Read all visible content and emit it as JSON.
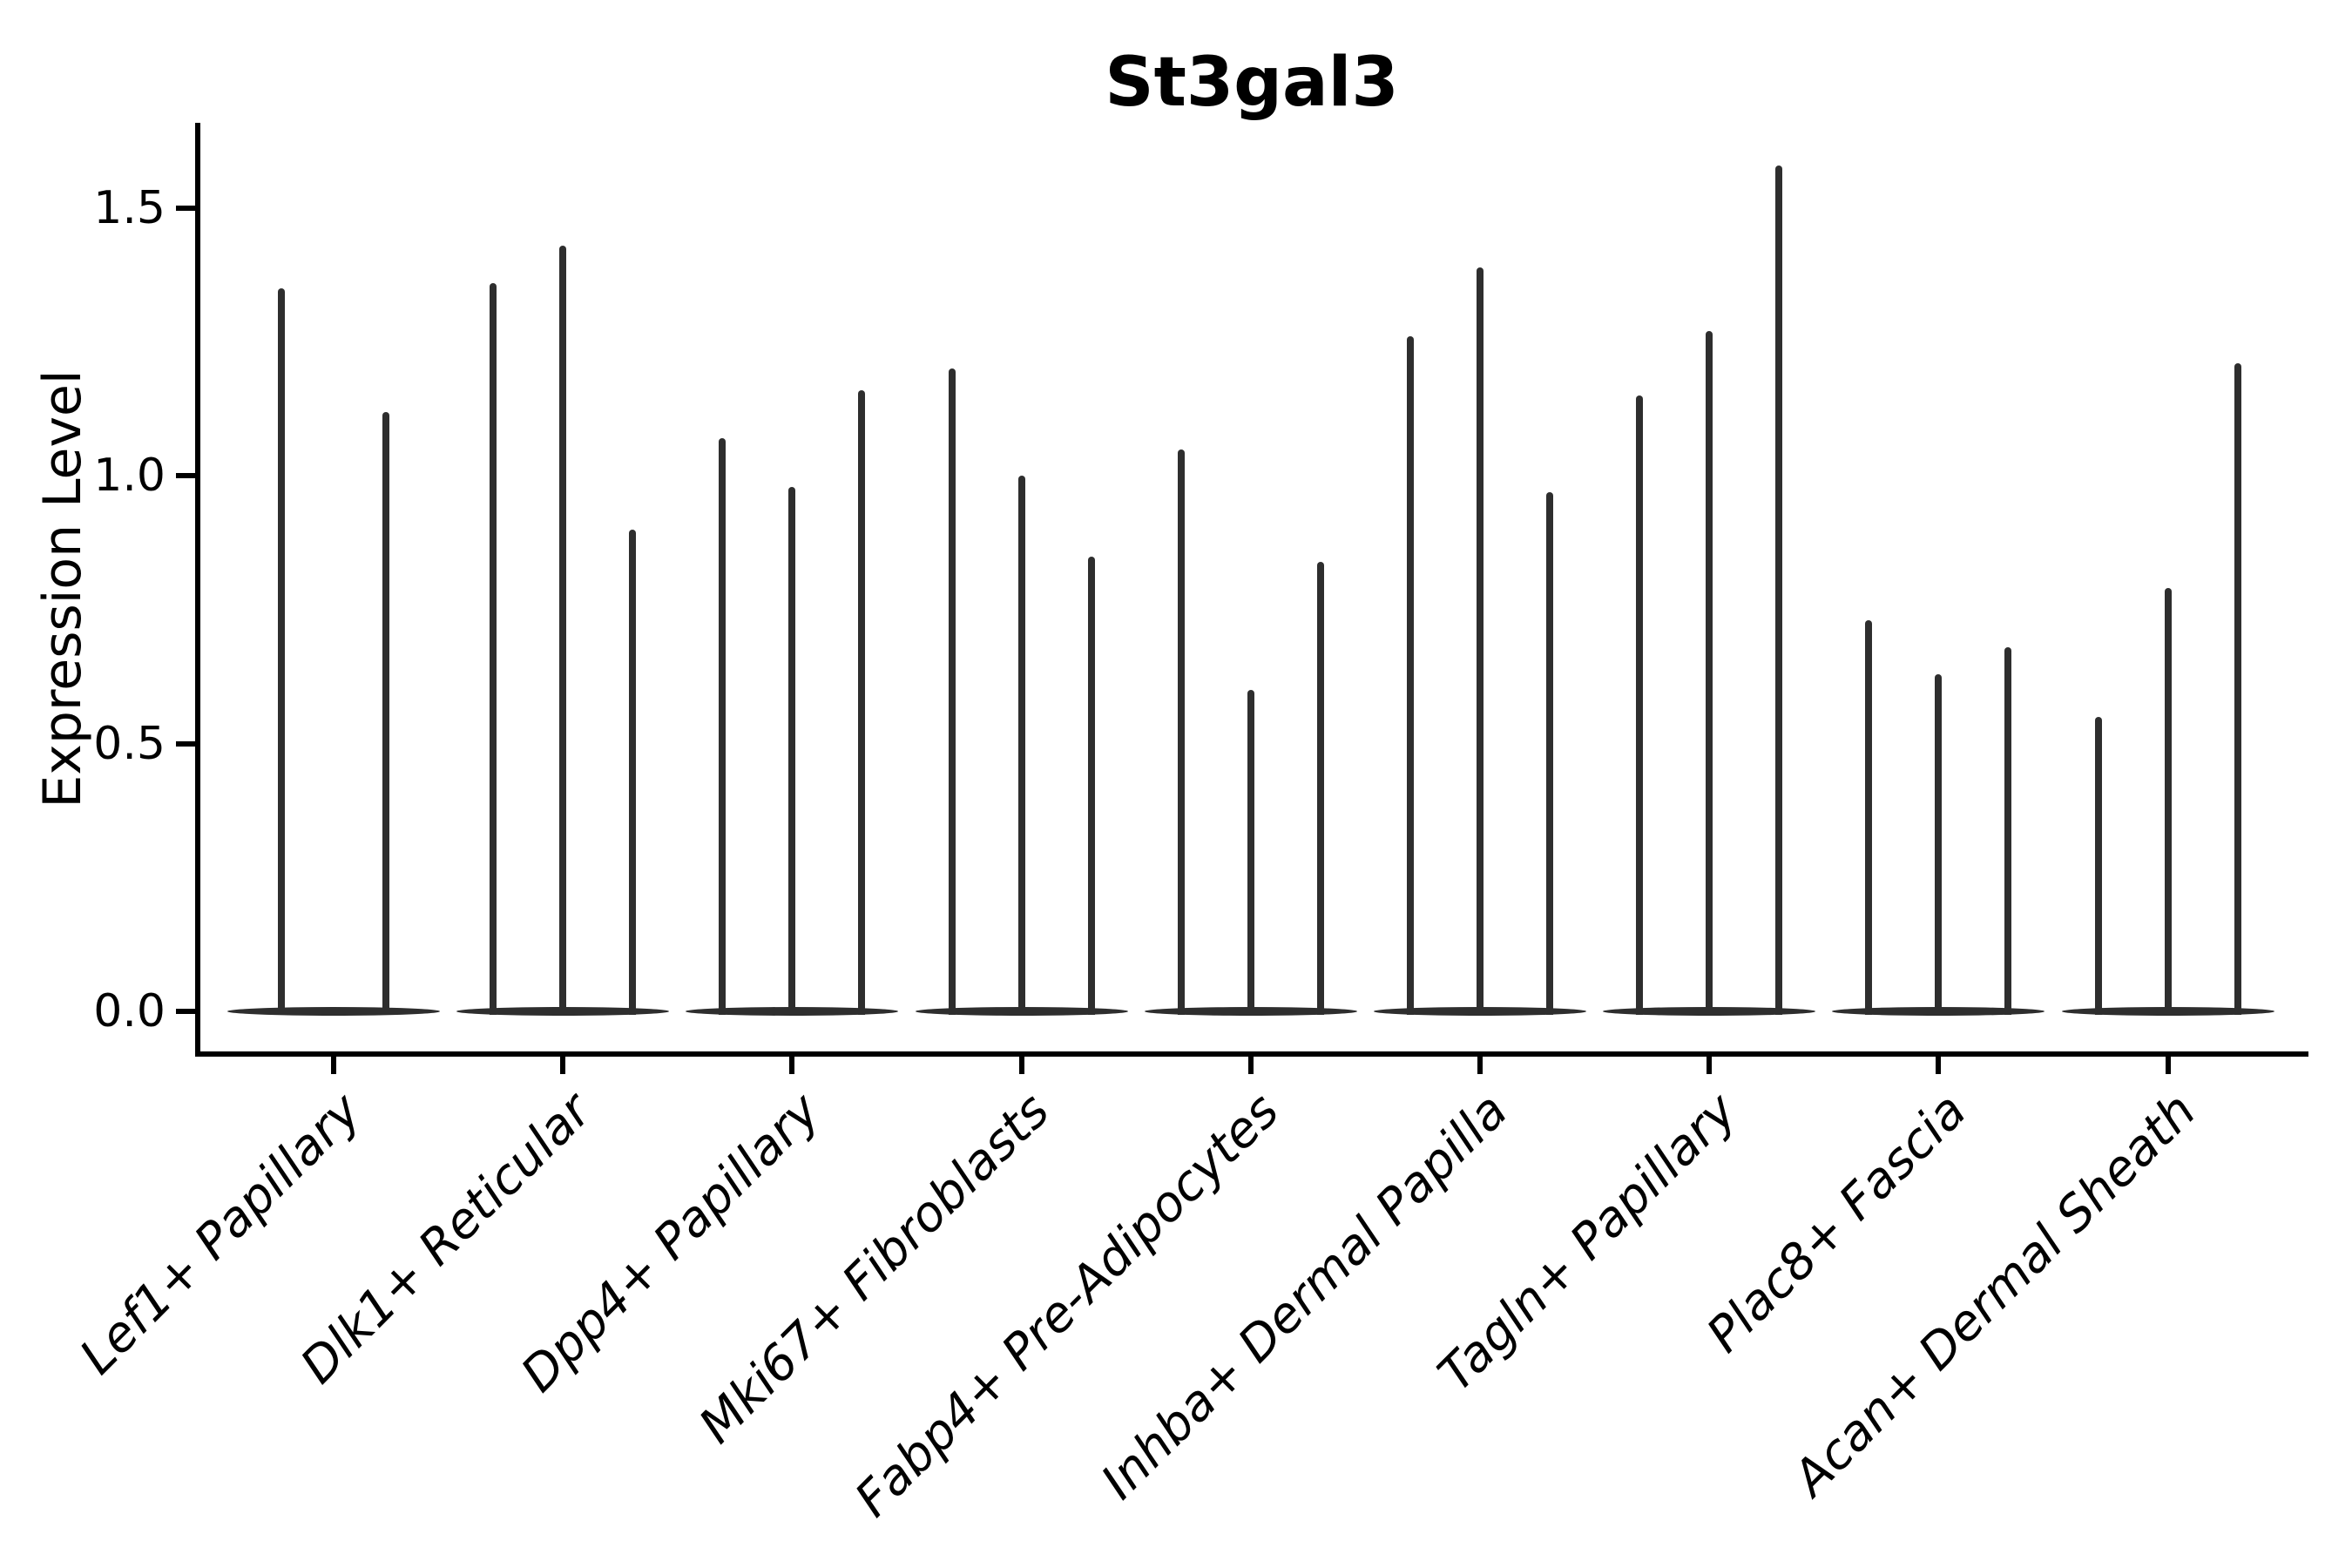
{
  "chart_data": {
    "type": "violin",
    "title": "St3gal3",
    "xlabel": "",
    "ylabel": "Expression Level",
    "yticks": [
      0.0,
      0.5,
      1.0,
      1.5
    ],
    "ytick_labels": [
      "0.0",
      "0.5",
      "1.0",
      "1.5"
    ],
    "ylim": [
      -0.08,
      1.66
    ],
    "legend": "none",
    "grid": false,
    "style_note": "Extremely thin spike-like violins: bulk of distribution at 0 (flat base blob), narrow spike up to each violin's max expression value",
    "categories": [
      "Lef1+ Papillary",
      "Dlk1+ Reticular",
      "Dpp4+ Papillary",
      "Mki67+ Fibroblasts",
      "Fabp4+ Pre-Adipocytes",
      "Inhba+ Dermal Papilla",
      "Tagln+ Papillary",
      "Plac8+ Fascia",
      "Acan+ Dermal Sheath"
    ],
    "groups": [
      {
        "label": "Lef1+ Papillary",
        "violin_max_values": [
          1.35,
          1.12
        ]
      },
      {
        "label": "Dlk1+ Reticular",
        "violin_max_values": [
          1.36,
          1.43,
          0.9
        ]
      },
      {
        "label": "Dpp4+ Papillary",
        "violin_max_values": [
          1.07,
          0.98,
          1.16
        ]
      },
      {
        "label": "Mki67+ Fibroblasts",
        "violin_max_values": [
          1.2,
          1.0,
          0.85
        ]
      },
      {
        "label": "Fabp4+ Pre-Adipocytes",
        "violin_max_values": [
          1.05,
          0.6,
          0.84
        ]
      },
      {
        "label": "Inhba+ Dermal Papilla",
        "violin_max_values": [
          1.26,
          1.39,
          0.97
        ]
      },
      {
        "label": "Tagln+ Papillary",
        "violin_max_values": [
          1.15,
          1.27,
          1.58
        ]
      },
      {
        "label": "Plac8+ Fascia",
        "violin_max_values": [
          0.73,
          0.63,
          0.68
        ]
      },
      {
        "label": "Acan+ Dermal Sheath",
        "violin_max_values": [
          0.55,
          0.79,
          1.21
        ]
      }
    ],
    "colors": {
      "violin": "#2e2e2e",
      "axis": "#000000",
      "text": "#000000",
      "background": "#ffffff"
    }
  }
}
